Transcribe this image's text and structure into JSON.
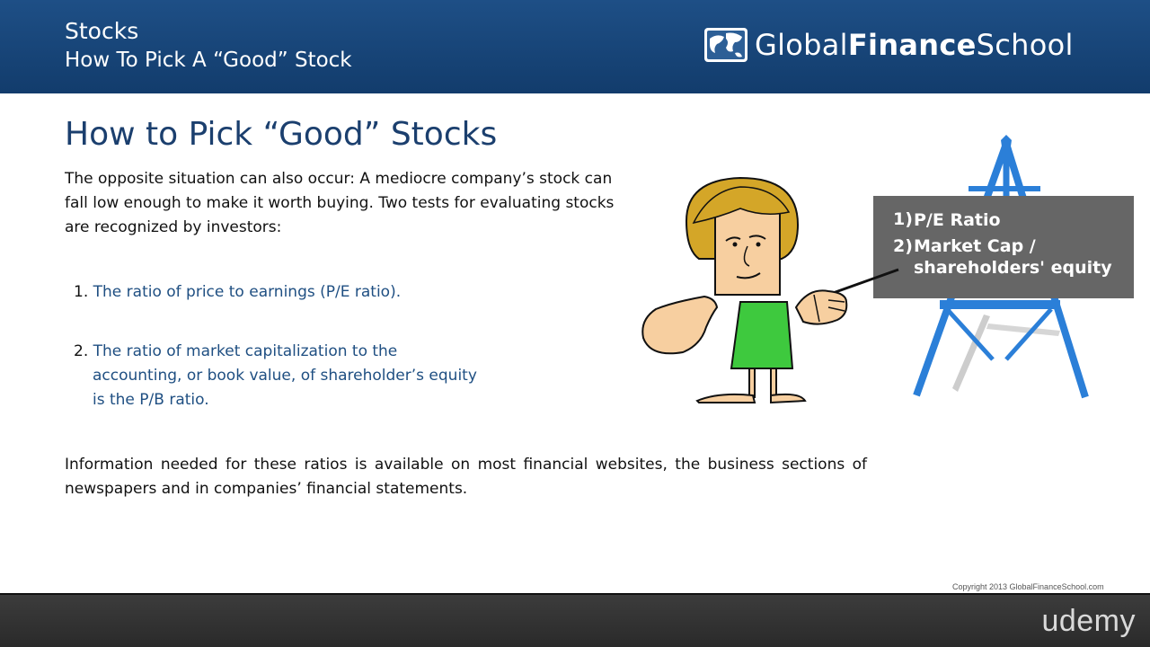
{
  "header": {
    "title": "Stocks",
    "subtitle": "How To Pick A “Good” Stock",
    "logo": {
      "part1": "Global",
      "part2": "Finance",
      "part3": "School",
      "icon": "globe-map-icon"
    }
  },
  "main": {
    "title": "How to Pick “Good” Stocks",
    "intro": "The opposite situation can also occur: A mediocre company’s stock can fall low enough to make it worth buying. Two tests for evaluating stocks are recognized by investors:",
    "list": [
      {
        "num": "1.",
        "text": "The ratio of price to earnings (P/E ratio)."
      },
      {
        "num": "2.",
        "line1": "The ratio of market capitalization to the",
        "line2": "accounting, or book value, of shareholder’s equity",
        "line3": "is the P/B ratio."
      }
    ],
    "outro": "Information needed for these ratios is available on most financial websites, the business sections of newspapers and in companies’ financial statements."
  },
  "illustration": {
    "board": {
      "item1_num": "1)",
      "item1": "P/E Ratio",
      "item2_num": "2)",
      "item2_line1": "Market Cap /",
      "item2_line2": "shareholders' equity"
    }
  },
  "copyright": "Copyright 2013 GlobalFinanceSchool.com",
  "footer": {
    "brand": "udemy"
  },
  "colors": {
    "header_bg": "#1a4a80",
    "title_blue": "#1b3f6e",
    "list_blue": "#1f4f82",
    "board_gray": "#666666",
    "easel_blue": "#2b7fd8",
    "dress_green": "#3ec93e",
    "hair_gold": "#d4a628",
    "skin": "#f7cfa0",
    "footer_bg": "#333333"
  }
}
